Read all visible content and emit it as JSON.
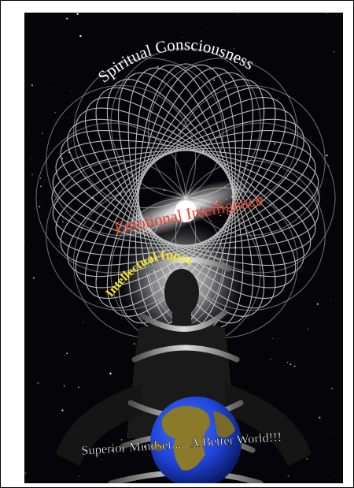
{
  "poster": {
    "top_arc_text": "Spiritual Consciousness",
    "middle_text": "Emotional Intelligence",
    "inner_arc_text": "Intellectual Input",
    "bottom_text": "Superior Mindset..... A Better World!!!"
  },
  "colors": {
    "background": "#050509",
    "frame_border": "#000000",
    "mesh_lines": "#d8d8d8",
    "top_text": "#ffffff",
    "middle_text": "#e8402c",
    "inner_text": "#f5e32a",
    "bottom_text": "#ffffff",
    "globe_ocean": "#1f44d8",
    "globe_land": "#8a7a2a"
  },
  "icons": [
    "sacred-geometry-mesh",
    "human-silhouette",
    "dna-spiral-ribbon",
    "earth-globe",
    "starfield",
    "light-burst"
  ]
}
